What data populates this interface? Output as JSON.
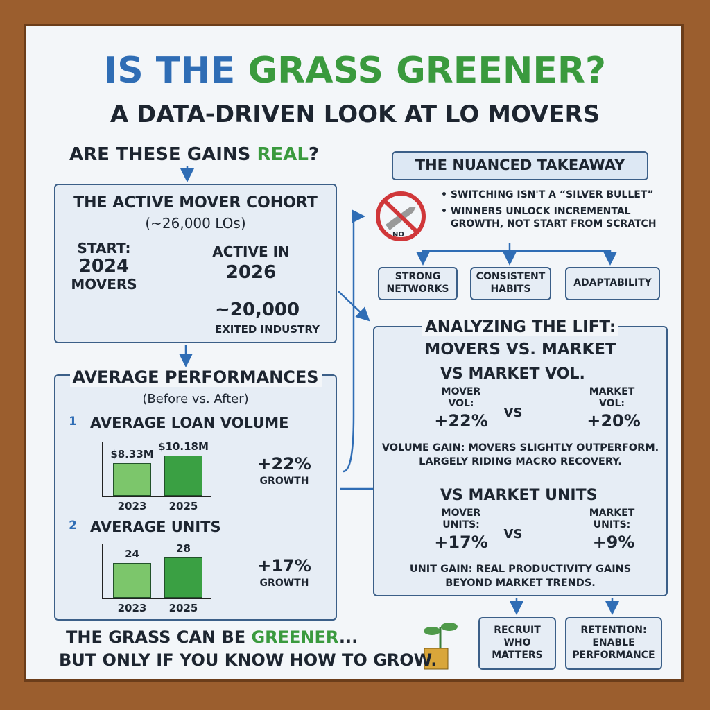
{
  "title": {
    "lead": "IS THE",
    "highlight": "GRASS GREENER?"
  },
  "subtitle": "A DATA-DRIVEN LOOK AT LO MOVERS",
  "question": {
    "lead": "ARE THESE GAINS",
    "highlight": "REAL",
    "end": "?"
  },
  "cohort": {
    "title": "THE ACTIVE MOVER COHORT",
    "size": "(~26,000 LOs)",
    "start": [
      "START:",
      "2024",
      "MOVERS"
    ],
    "active": [
      "ACTIVE IN",
      "2026"
    ],
    "exited": [
      "~20,000",
      "EXITED INDUSTRY"
    ]
  },
  "performances": {
    "title": "AVERAGE PERFORMANCES",
    "subtitle": "(Before vs. After)",
    "metrics": [
      {
        "number": "1",
        "label": "AVERAGE LOAN VOLUME",
        "categories": [
          "2023",
          "2025"
        ],
        "values": [
          8.33,
          10.18
        ],
        "value_labels": [
          "$8.33M",
          "$10.18M"
        ],
        "change": "+22%",
        "change_label": "GROWTH"
      },
      {
        "number": "2",
        "label": "AVERAGE UNITS",
        "categories": [
          "2023",
          "2025"
        ],
        "values": [
          24,
          28
        ],
        "change": "+17%",
        "change_label": "GROWTH"
      }
    ]
  },
  "takeaway": {
    "title": "THE NUANCED TAKEAWAY",
    "icon_label": "NO",
    "bullets": [
      [
        "SWITCHING ISN'T A “SILVER BULLET”"
      ],
      [
        "WINNERS UNLOCK INCREMENTAL",
        "GROWTH, NOT START FROM SCRATCH"
      ]
    ],
    "traits": [
      [
        "STRONG",
        "NETWORKS"
      ],
      [
        "CONSISTENT",
        "HABITS"
      ],
      [
        "ADAPTABILITY"
      ]
    ]
  },
  "lift": {
    "title": [
      "ANALYZING THE LIFT:",
      "MOVERS VS. MARKET"
    ],
    "sections": [
      {
        "heading": "VS MARKET VOL.",
        "mover_label": [
          "MOVER",
          "VOL:"
        ],
        "mover_value": "+22%",
        "vs": "VS",
        "market_label": [
          "MARKET",
          "VOL:"
        ],
        "market_value": "+20%",
        "gain_label": "VOLUME GAIN",
        "note": [
          ": MOVERS SLIGHTLY OUTPERFORM.",
          "LARGELY RIDING MACRO RECOVERY."
        ]
      },
      {
        "heading": "VS MARKET UNITS",
        "mover_label": [
          "MOVER",
          "UNITS:"
        ],
        "mover_value": "+17%",
        "vs": "VS",
        "market_label": [
          "MARKET",
          "UNITS:"
        ],
        "market_value": "+9%",
        "gain_label": "UNIT GAIN",
        "note": [
          ": REAL PRODUCTIVITY GAINS",
          "BEYOND MARKET TRENDS."
        ]
      }
    ]
  },
  "actions": [
    [
      "RECRUIT",
      "WHO",
      "MATTERS"
    ],
    [
      "RETENTION:",
      "ENABLE",
      "PERFORMANCE"
    ]
  ],
  "conclusion": {
    "lead": "THE GRASS CAN BE",
    "highlight": "GREENER",
    "end": "...",
    "line2": "BUT ONLY IF YOU KNOW HOW TO GROW."
  }
}
